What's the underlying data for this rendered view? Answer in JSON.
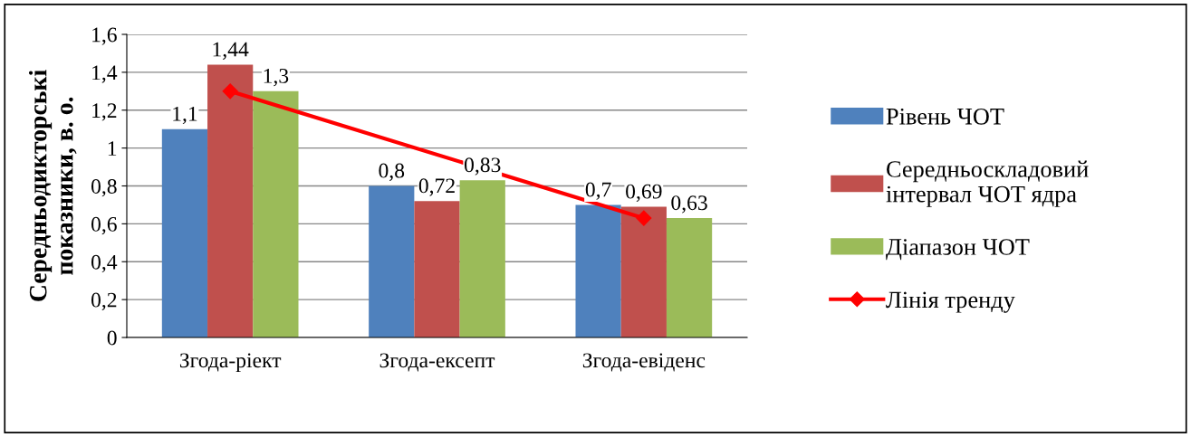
{
  "chart_data": {
    "type": "bar",
    "ylabel": "Середньодикторські\nпоказники, в. о.",
    "categories": [
      "Згода-ріект",
      "Згода-ексепт",
      "Згода-евіденс"
    ],
    "series": [
      {
        "name": "Рівень ЧОТ",
        "color": "#4f81bd",
        "values": [
          1.1,
          0.8,
          0.7
        ],
        "value_labels": [
          "1,1",
          "0,8",
          "0,7"
        ]
      },
      {
        "name": "Середньоскладовий\nінтервал ЧОТ ядра",
        "color": "#c0504d",
        "values": [
          1.44,
          0.72,
          0.69
        ],
        "value_labels": [
          "1,44",
          "0,72",
          "0,69"
        ]
      },
      {
        "name": "Діапазон ЧОТ",
        "color": "#9bbb59",
        "values": [
          1.3,
          0.83,
          0.63
        ],
        "value_labels": [
          "1,3",
          "0,83",
          "0,63"
        ]
      },
      {
        "name": "Лінія тренду",
        "type": "line",
        "color": "#ff0000",
        "values": [
          1.3,
          null,
          0.63
        ],
        "marker": "diamond"
      }
    ],
    "ylim": [
      0,
      1.6
    ],
    "yticks": [
      {
        "value": 0,
        "label": "0"
      },
      {
        "value": 0.2,
        "label": "0,2"
      },
      {
        "value": 0.4,
        "label": "0,4"
      },
      {
        "value": 0.6,
        "label": "0,6"
      },
      {
        "value": 0.8,
        "label": "0,8"
      },
      {
        "value": 1,
        "label": "1"
      },
      {
        "value": 1.2,
        "label": "1,2"
      },
      {
        "value": 1.4,
        "label": "1,4"
      },
      {
        "value": 1.6,
        "label": "1,6"
      }
    ],
    "grid": "y",
    "legend": "right"
  }
}
